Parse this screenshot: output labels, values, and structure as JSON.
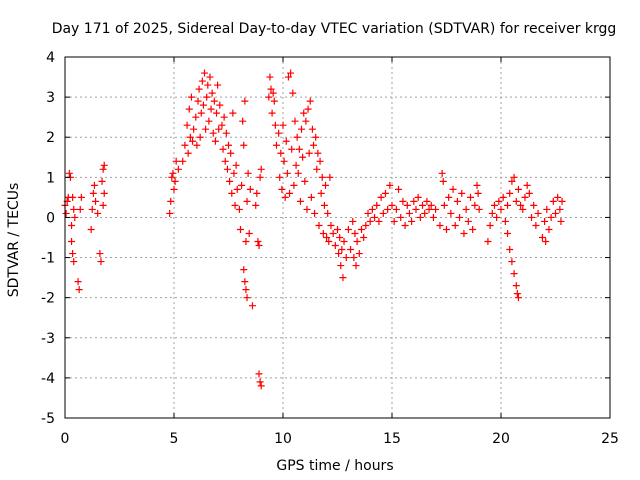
{
  "chart_data": {
    "type": "scatter",
    "title": "Day 171 of 2025, Sidereal Day-to-day VTEC variation (SDTVAR) for receiver krgg",
    "xlabel": "GPS time / hours",
    "ylabel": "SDTVAR / TECUs",
    "xlim": [
      0,
      25
    ],
    "ylim": [
      -5,
      4
    ],
    "xticks": [
      "0",
      "5",
      "10",
      "15",
      "20",
      "25"
    ],
    "yticks": [
      "4",
      "3",
      "2",
      "1",
      "0",
      "-1",
      "-2",
      "-3",
      "-4",
      "-5"
    ],
    "xtick_values": [
      0,
      5,
      10,
      15,
      20,
      25
    ],
    "ytick_values": [
      4,
      3,
      2,
      1,
      0,
      -1,
      -2,
      -3,
      -4,
      -5
    ],
    "grid": true,
    "marker": "+",
    "series": [
      {
        "name": "SDTVAR",
        "color": "#ff0000",
        "points": [
          [
            0.0,
            0.3
          ],
          [
            0.05,
            0.1
          ],
          [
            0.1,
            0.4
          ],
          [
            0.15,
            0.5
          ],
          [
            0.2,
            1.1
          ],
          [
            0.25,
            1.0
          ],
          [
            0.3,
            -0.2
          ],
          [
            0.3,
            -0.6
          ],
          [
            0.35,
            -0.9
          ],
          [
            0.4,
            -1.1
          ],
          [
            0.35,
            0.5
          ],
          [
            0.4,
            0.2
          ],
          [
            0.45,
            0.0
          ],
          [
            0.6,
            -1.6
          ],
          [
            0.65,
            -1.8
          ],
          [
            0.7,
            0.2
          ],
          [
            0.75,
            0.5
          ],
          [
            1.2,
            -0.3
          ],
          [
            1.25,
            0.2
          ],
          [
            1.3,
            0.6
          ],
          [
            1.35,
            0.8
          ],
          [
            1.4,
            0.4
          ],
          [
            1.5,
            0.1
          ],
          [
            1.6,
            -0.9
          ],
          [
            1.65,
            -1.1
          ],
          [
            1.7,
            0.9
          ],
          [
            1.75,
            1.2
          ],
          [
            1.8,
            1.3
          ],
          [
            1.75,
            0.3
          ],
          [
            1.8,
            0.6
          ],
          [
            4.8,
            0.1
          ],
          [
            4.85,
            0.4
          ],
          [
            4.9,
            1.0
          ],
          [
            4.95,
            1.1
          ],
          [
            5.0,
            0.7
          ],
          [
            5.05,
            0.9
          ],
          [
            5.1,
            1.4
          ],
          [
            5.2,
            1.2
          ],
          [
            5.4,
            1.4
          ],
          [
            5.5,
            1.8
          ],
          [
            5.6,
            2.3
          ],
          [
            5.65,
            1.6
          ],
          [
            5.7,
            2.7
          ],
          [
            5.75,
            2.0
          ],
          [
            5.8,
            3.0
          ],
          [
            5.85,
            1.9
          ],
          [
            5.9,
            2.2
          ],
          [
            6.0,
            2.5
          ],
          [
            6.05,
            1.8
          ],
          [
            6.1,
            2.9
          ],
          [
            6.15,
            3.2
          ],
          [
            6.2,
            2.0
          ],
          [
            6.25,
            2.6
          ],
          [
            6.3,
            3.4
          ],
          [
            6.35,
            2.8
          ],
          [
            6.4,
            3.6
          ],
          [
            6.45,
            2.2
          ],
          [
            6.5,
            3.0
          ],
          [
            6.55,
            3.3
          ],
          [
            6.6,
            2.4
          ],
          [
            6.65,
            3.5
          ],
          [
            6.7,
            2.7
          ],
          [
            6.75,
            3.1
          ],
          [
            6.8,
            2.1
          ],
          [
            6.85,
            2.9
          ],
          [
            6.9,
            1.9
          ],
          [
            6.95,
            2.6
          ],
          [
            7.0,
            3.3
          ],
          [
            7.05,
            2.2
          ],
          [
            7.1,
            2.8
          ],
          [
            7.2,
            2.3
          ],
          [
            7.25,
            1.7
          ],
          [
            7.3,
            2.5
          ],
          [
            7.35,
            1.4
          ],
          [
            7.4,
            2.1
          ],
          [
            7.45,
            1.2
          ],
          [
            7.5,
            1.8
          ],
          [
            7.55,
            0.9
          ],
          [
            7.6,
            1.6
          ],
          [
            7.65,
            0.6
          ],
          [
            7.7,
            2.6
          ],
          [
            7.75,
            1.1
          ],
          [
            7.8,
            0.3
          ],
          [
            7.85,
            1.3
          ],
          [
            7.9,
            0.7
          ],
          [
            8.0,
            0.2
          ],
          [
            8.05,
            -0.3
          ],
          [
            8.1,
            0.8
          ],
          [
            8.15,
            2.4
          ],
          [
            8.2,
            1.8
          ],
          [
            8.25,
            2.9
          ],
          [
            8.3,
            -0.6
          ],
          [
            8.35,
            0.4
          ],
          [
            8.4,
            1.1
          ],
          [
            8.45,
            -0.4
          ],
          [
            8.5,
            0.7
          ],
          [
            8.2,
            -1.3
          ],
          [
            8.25,
            -1.6
          ],
          [
            8.3,
            -1.8
          ],
          [
            8.35,
            -2.0
          ],
          [
            8.6,
            -2.2
          ],
          [
            8.75,
            0.3
          ],
          [
            8.8,
            0.6
          ],
          [
            8.85,
            -0.6
          ],
          [
            8.9,
            -0.7
          ],
          [
            8.95,
            1.0
          ],
          [
            9.0,
            1.2
          ],
          [
            8.9,
            -3.9
          ],
          [
            8.95,
            -4.1
          ],
          [
            9.0,
            -4.2
          ],
          [
            9.35,
            3.0
          ],
          [
            9.4,
            3.5
          ],
          [
            9.45,
            3.2
          ],
          [
            9.5,
            2.6
          ],
          [
            9.55,
            3.1
          ],
          [
            9.6,
            2.9
          ],
          [
            9.65,
            2.3
          ],
          [
            9.7,
            1.8
          ],
          [
            9.8,
            2.1
          ],
          [
            9.85,
            1.0
          ],
          [
            9.9,
            1.6
          ],
          [
            9.95,
            0.7
          ],
          [
            10.0,
            2.3
          ],
          [
            10.05,
            1.4
          ],
          [
            10.1,
            0.5
          ],
          [
            10.15,
            1.9
          ],
          [
            10.2,
            1.1
          ],
          [
            10.25,
            3.5
          ],
          [
            10.3,
            0.6
          ],
          [
            10.35,
            3.6
          ],
          [
            10.4,
            1.7
          ],
          [
            10.45,
            3.1
          ],
          [
            10.5,
            0.8
          ],
          [
            10.55,
            2.4
          ],
          [
            10.6,
            1.3
          ],
          [
            10.65,
            2.0
          ],
          [
            10.7,
            1.1
          ],
          [
            10.75,
            1.7
          ],
          [
            10.8,
            0.4
          ],
          [
            10.85,
            2.2
          ],
          [
            10.9,
            1.5
          ],
          [
            10.95,
            2.6
          ],
          [
            11.0,
            0.9
          ],
          [
            11.05,
            2.4
          ],
          [
            11.1,
            0.2
          ],
          [
            11.15,
            2.7
          ],
          [
            11.2,
            1.6
          ],
          [
            11.25,
            2.9
          ],
          [
            11.3,
            0.5
          ],
          [
            11.35,
            2.2
          ],
          [
            11.4,
            1.8
          ],
          [
            11.45,
            0.1
          ],
          [
            11.5,
            2.0
          ],
          [
            11.55,
            1.2
          ],
          [
            11.6,
            1.6
          ],
          [
            11.65,
            -0.2
          ],
          [
            11.7,
            1.4
          ],
          [
            11.75,
            0.6
          ],
          [
            11.8,
            1.0
          ],
          [
            11.85,
            -0.4
          ],
          [
            11.9,
            0.3
          ],
          [
            11.95,
            0.8
          ],
          [
            12.0,
            -0.5
          ],
          [
            12.05,
            0.1
          ],
          [
            12.1,
            -0.6
          ],
          [
            12.15,
            1.0
          ],
          [
            12.2,
            -0.2
          ],
          [
            12.3,
            -0.4
          ],
          [
            12.4,
            -0.7
          ],
          [
            12.5,
            -0.3
          ],
          [
            12.55,
            -0.9
          ],
          [
            12.6,
            -0.5
          ],
          [
            12.65,
            -1.2
          ],
          [
            12.7,
            -0.8
          ],
          [
            12.75,
            -1.5
          ],
          [
            12.8,
            -0.6
          ],
          [
            12.9,
            -1.0
          ],
          [
            13.0,
            -0.3
          ],
          [
            13.1,
            -0.8
          ],
          [
            13.2,
            -0.1
          ],
          [
            13.25,
            -1.0
          ],
          [
            13.3,
            -0.4
          ],
          [
            13.35,
            -1.2
          ],
          [
            13.4,
            -0.6
          ],
          [
            13.5,
            -0.9
          ],
          [
            13.6,
            -0.3
          ],
          [
            13.7,
            -0.5
          ],
          [
            13.8,
            -0.2
          ],
          [
            13.9,
            0.1
          ],
          [
            14.0,
            -0.1
          ],
          [
            14.1,
            0.2
          ],
          [
            14.2,
            0.0
          ],
          [
            14.3,
            0.3
          ],
          [
            14.4,
            -0.1
          ],
          [
            14.5,
            0.5
          ],
          [
            14.6,
            0.1
          ],
          [
            14.7,
            0.6
          ],
          [
            14.8,
            0.2
          ],
          [
            14.9,
            0.8
          ],
          [
            15.0,
            0.3
          ],
          [
            15.1,
            -0.1
          ],
          [
            15.2,
            0.2
          ],
          [
            15.3,
            0.7
          ],
          [
            15.4,
            0.0
          ],
          [
            15.5,
            0.4
          ],
          [
            15.6,
            -0.2
          ],
          [
            15.7,
            0.3
          ],
          [
            15.8,
            0.1
          ],
          [
            15.9,
            -0.1
          ],
          [
            16.0,
            0.4
          ],
          [
            16.1,
            0.2
          ],
          [
            16.2,
            0.5
          ],
          [
            16.3,
            0.0
          ],
          [
            16.4,
            0.3
          ],
          [
            16.5,
            0.1
          ],
          [
            16.6,
            0.4
          ],
          [
            16.7,
            0.2
          ],
          [
            16.8,
            0.3
          ],
          [
            16.9,
            0.0
          ],
          [
            17.0,
            0.2
          ],
          [
            17.2,
            -0.2
          ],
          [
            17.3,
            1.1
          ],
          [
            17.35,
            0.9
          ],
          [
            17.4,
            0.3
          ],
          [
            17.5,
            -0.3
          ],
          [
            17.6,
            0.5
          ],
          [
            17.7,
            0.1
          ],
          [
            17.8,
            0.7
          ],
          [
            17.9,
            -0.2
          ],
          [
            18.0,
            0.4
          ],
          [
            18.1,
            0.0
          ],
          [
            18.2,
            0.6
          ],
          [
            18.3,
            -0.4
          ],
          [
            18.4,
            0.2
          ],
          [
            18.5,
            -0.1
          ],
          [
            18.6,
            0.5
          ],
          [
            18.7,
            -0.3
          ],
          [
            18.8,
            0.3
          ],
          [
            18.9,
            0.8
          ],
          [
            18.95,
            0.6
          ],
          [
            19.0,
            0.2
          ],
          [
            19.4,
            -0.6
          ],
          [
            19.5,
            -0.2
          ],
          [
            19.6,
            0.1
          ],
          [
            19.7,
            0.3
          ],
          [
            19.8,
            0.0
          ],
          [
            19.9,
            0.4
          ],
          [
            20.0,
            0.2
          ],
          [
            20.1,
            0.5
          ],
          [
            20.2,
            -0.1
          ],
          [
            20.3,
            0.3
          ],
          [
            20.4,
            0.6
          ],
          [
            20.5,
            0.9
          ],
          [
            20.6,
            1.0
          ],
          [
            20.7,
            0.4
          ],
          [
            20.8,
            0.7
          ],
          [
            20.9,
            0.3
          ],
          [
            20.3,
            -0.4
          ],
          [
            20.4,
            -0.8
          ],
          [
            20.5,
            -1.1
          ],
          [
            20.6,
            -1.4
          ],
          [
            20.7,
            -1.7
          ],
          [
            20.75,
            -1.9
          ],
          [
            20.8,
            -2.0
          ],
          [
            21.0,
            0.2
          ],
          [
            21.1,
            0.5
          ],
          [
            21.2,
            0.8
          ],
          [
            21.3,
            0.6
          ],
          [
            21.4,
            0.0
          ],
          [
            21.5,
            0.3
          ],
          [
            21.6,
            -0.2
          ],
          [
            21.7,
            0.1
          ],
          [
            21.9,
            -0.5
          ],
          [
            22.0,
            -0.1
          ],
          [
            22.05,
            -0.6
          ],
          [
            22.1,
            0.2
          ],
          [
            22.2,
            -0.3
          ],
          [
            22.3,
            0.0
          ],
          [
            22.4,
            0.4
          ],
          [
            22.5,
            0.1
          ],
          [
            22.6,
            0.5
          ],
          [
            22.7,
            0.2
          ],
          [
            22.75,
            -0.1
          ],
          [
            22.8,
            0.4
          ]
        ]
      }
    ]
  }
}
